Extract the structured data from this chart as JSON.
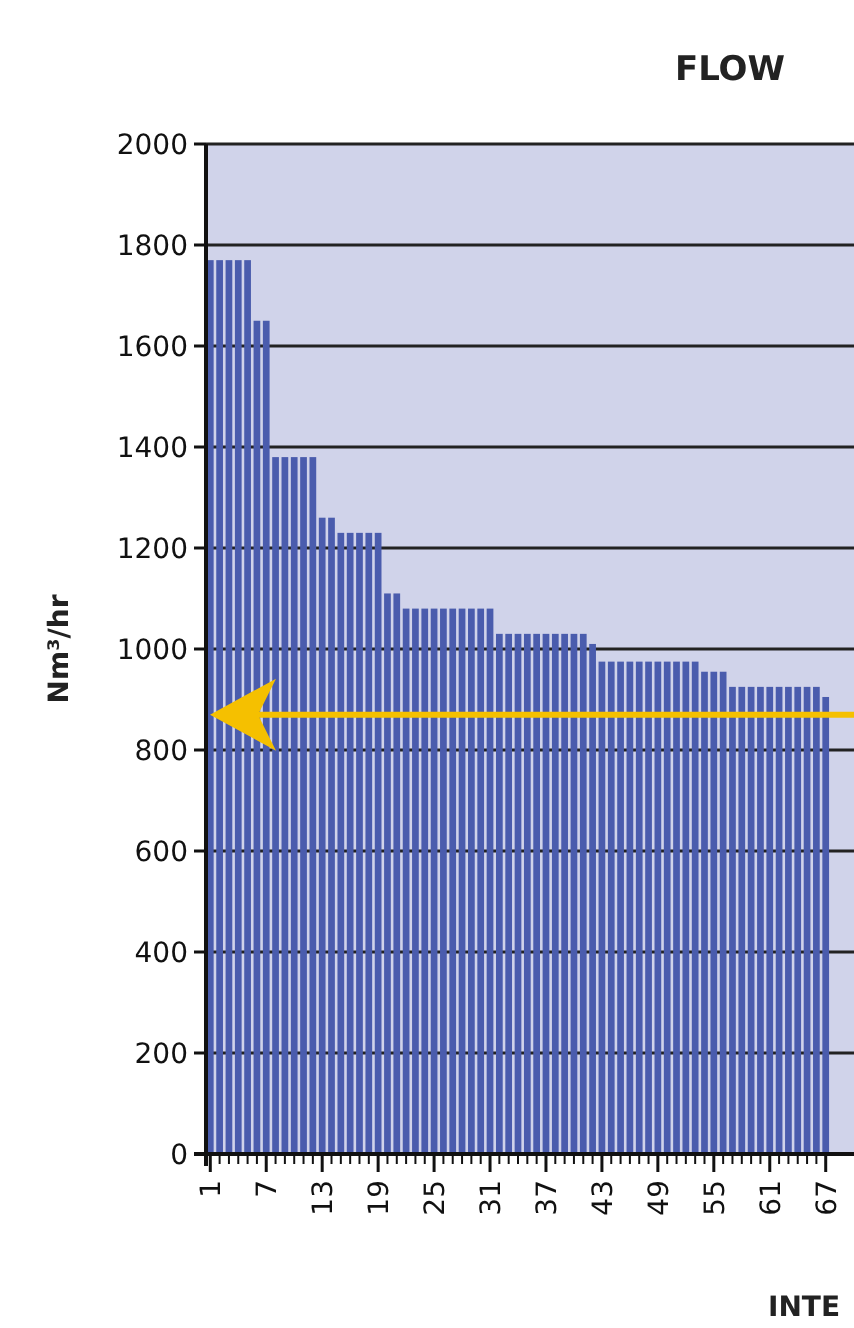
{
  "chart_data": {
    "type": "bar",
    "title": "FLOW",
    "xlabel": "INTE",
    "ylabel": "Nm³/hr",
    "categories": [
      "1",
      null,
      null,
      null,
      null,
      null,
      "7",
      null,
      null,
      null,
      null,
      null,
      "13",
      null,
      null,
      null,
      null,
      null,
      "19",
      null,
      null,
      null,
      null,
      null,
      "25",
      null,
      null,
      null,
      null,
      null,
      "31",
      null,
      null,
      null,
      null,
      null,
      "37",
      null,
      null,
      null,
      null,
      null,
      "43",
      null,
      null,
      null,
      null,
      null,
      "49",
      null,
      null,
      null,
      null,
      null,
      "55",
      null,
      null,
      null,
      null,
      null,
      "61",
      null,
      null,
      null,
      null,
      null,
      "67"
    ],
    "values": [
      1770,
      1770,
      1770,
      1770,
      1770,
      1650,
      1650,
      1380,
      1380,
      1380,
      1380,
      1380,
      1260,
      1260,
      1230,
      1230,
      1230,
      1230,
      1230,
      1110,
      1110,
      1080,
      1080,
      1080,
      1080,
      1080,
      1080,
      1080,
      1080,
      1080,
      1080,
      1030,
      1030,
      1030,
      1030,
      1030,
      1030,
      1030,
      1030,
      1030,
      1030,
      1010,
      975,
      975,
      975,
      975,
      975,
      975,
      975,
      975,
      975,
      975,
      975,
      955,
      955,
      955,
      925,
      925,
      925,
      925,
      925,
      925,
      925,
      925,
      925,
      925,
      905
    ],
    "color": "#4a5cad",
    "ylim": [
      0,
      2000
    ],
    "yticks": [
      0,
      200,
      400,
      600,
      800,
      1000,
      1200,
      1400,
      1600,
      1800,
      2000
    ],
    "grid": "y",
    "ref_lines": [
      {
        "axis": "y",
        "value": 870,
        "color": "#f5c000"
      }
    ]
  }
}
